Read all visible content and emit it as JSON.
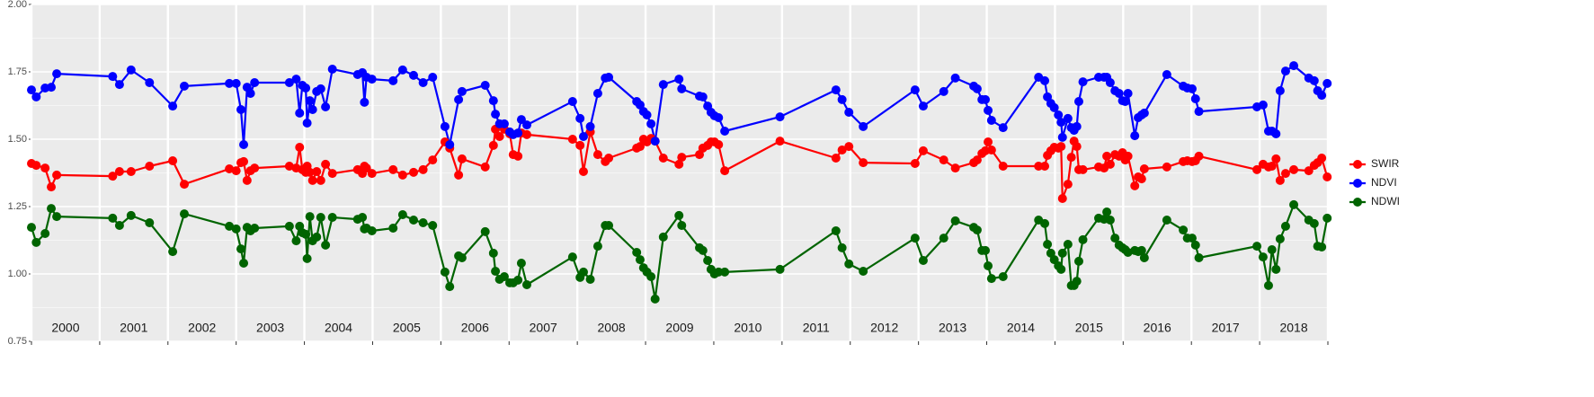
{
  "chart_data": {
    "type": "line",
    "ylim": [
      0.75,
      2.0
    ],
    "yticks": [
      0.75,
      {
        "value": 1,
        "label": "1.00"
      },
      1.25,
      {
        "value": 1.5,
        "label": "1.50"
      },
      1.75,
      {
        "value": 2,
        "label": "2.00"
      }
    ],
    "xlim": [
      2000,
      2019
    ],
    "xticks": [
      2000,
      2001,
      2002,
      2003,
      2004,
      2005,
      2006,
      2007,
      2008,
      2009,
      2010,
      2011,
      2012,
      2013,
      2014,
      2015,
      2016,
      2017,
      2018,
      2019
    ],
    "year_labels": [
      2000,
      2001,
      2002,
      2003,
      2004,
      2005,
      2006,
      2007,
      2008,
      2009,
      2010,
      2011,
      2012,
      2013,
      2014,
      2015,
      2016,
      2017,
      2018
    ],
    "grid": true,
    "legend": "right",
    "x": [
      2000.0,
      2000.07,
      2000.2,
      2000.29,
      2000.37,
      2001.19,
      2001.29,
      2001.46,
      2001.73,
      2002.07,
      2002.24,
      2002.9,
      2003.0,
      2003.07,
      2003.11,
      2003.16,
      2003.21,
      2003.27,
      2003.78,
      2003.88,
      2003.93,
      2003.97,
      2004.02,
      2004.04,
      2004.08,
      2004.12,
      2004.18,
      2004.24,
      2004.31,
      2004.41,
      2004.78,
      2004.85,
      2004.88,
      2004.91,
      2004.99,
      2005.3,
      2005.44,
      2005.6,
      2005.74,
      2005.88,
      2006.06,
      2006.13,
      2006.26,
      2006.31,
      2006.65,
      2006.77,
      2006.8,
      2006.86,
      2006.93,
      2007.01,
      2007.06,
      2007.13,
      2007.18,
      2007.26,
      2007.93,
      2008.04,
      2008.09,
      2008.19,
      2008.3,
      2008.41,
      2008.46,
      2008.87,
      2008.92,
      2008.97,
      2009.02,
      2009.08,
      2009.14,
      2009.26,
      2009.49,
      2009.53,
      2009.79,
      2009.84,
      2009.91,
      2009.96,
      2010.01,
      2010.07,
      2010.16,
      2010.97,
      2011.79,
      2011.88,
      2011.98,
      2012.19,
      2012.95,
      2013.07,
      2013.37,
      2013.54,
      2013.81,
      2013.86,
      2013.93,
      2013.98,
      2014.02,
      2014.07,
      2014.24,
      2014.76,
      2014.85,
      2014.89,
      2014.94,
      2014.99,
      2015.05,
      2015.09,
      2015.11,
      2015.19,
      2015.24,
      2015.28,
      2015.32,
      2015.35,
      2015.41,
      2015.64,
      2015.72,
      2015.76,
      2015.81,
      2015.88,
      2015.94,
      2015.99,
      2016.03,
      2016.07,
      2016.17,
      2016.22,
      2016.27,
      2016.31,
      2016.64,
      2016.88,
      2016.94,
      2017.01,
      2017.06,
      2017.11,
      2017.96,
      2018.05,
      2018.13,
      2018.18,
      2018.24,
      2018.3,
      2018.38,
      2018.5,
      2018.72,
      2018.8,
      2018.85,
      2018.91,
      2018.99
    ],
    "series": [
      {
        "name": "SWIR",
        "color": "#ff0000",
        "values": [
          1.41,
          1.403,
          1.393,
          1.323,
          1.367,
          1.363,
          1.38,
          1.38,
          1.4,
          1.42,
          1.333,
          1.39,
          1.383,
          1.413,
          1.417,
          1.347,
          1.383,
          1.393,
          1.4,
          1.393,
          1.47,
          1.387,
          1.377,
          1.4,
          1.377,
          1.347,
          1.38,
          1.347,
          1.407,
          1.373,
          1.387,
          1.373,
          1.4,
          1.393,
          1.373,
          1.387,
          1.367,
          1.377,
          1.387,
          1.423,
          1.49,
          1.467,
          1.367,
          1.427,
          1.397,
          1.477,
          1.537,
          1.51,
          1.537,
          1.52,
          1.443,
          1.437,
          1.523,
          1.517,
          1.5,
          1.477,
          1.38,
          1.527,
          1.443,
          1.417,
          1.43,
          1.467,
          1.473,
          1.5,
          1.49,
          1.503,
          1.493,
          1.43,
          1.407,
          1.433,
          1.443,
          1.467,
          1.477,
          1.49,
          1.49,
          1.48,
          1.383,
          1.493,
          1.43,
          1.46,
          1.473,
          1.413,
          1.41,
          1.457,
          1.423,
          1.393,
          1.413,
          1.423,
          1.447,
          1.457,
          1.49,
          1.46,
          1.4,
          1.4,
          1.4,
          1.44,
          1.457,
          1.47,
          1.467,
          1.473,
          1.28,
          1.333,
          1.433,
          1.493,
          1.473,
          1.387,
          1.387,
          1.397,
          1.393,
          1.437,
          1.407,
          1.443,
          1.437,
          1.45,
          1.423,
          1.437,
          1.327,
          1.36,
          1.353,
          1.39,
          1.397,
          1.417,
          1.42,
          1.417,
          1.42,
          1.437,
          1.387,
          1.407,
          1.397,
          1.4,
          1.427,
          1.347,
          1.373,
          1.387,
          1.383,
          1.403,
          1.413,
          1.43,
          1.36
        ]
      },
      {
        "name": "NDVI",
        "color": "#0000ff",
        "values": [
          1.683,
          1.657,
          1.69,
          1.693,
          1.743,
          1.733,
          1.703,
          1.757,
          1.71,
          1.623,
          1.697,
          1.707,
          1.707,
          1.61,
          1.48,
          1.693,
          1.67,
          1.71,
          1.71,
          1.723,
          1.597,
          1.7,
          1.69,
          1.56,
          1.643,
          1.61,
          1.677,
          1.687,
          1.62,
          1.76,
          1.74,
          1.747,
          1.637,
          1.73,
          1.723,
          1.717,
          1.757,
          1.737,
          1.71,
          1.73,
          1.547,
          1.48,
          1.647,
          1.677,
          1.7,
          1.643,
          1.593,
          1.557,
          1.557,
          1.527,
          1.517,
          1.523,
          1.573,
          1.553,
          1.64,
          1.577,
          1.51,
          1.547,
          1.67,
          1.727,
          1.73,
          1.64,
          1.627,
          1.603,
          1.59,
          1.557,
          1.493,
          1.703,
          1.723,
          1.687,
          1.66,
          1.657,
          1.623,
          1.6,
          1.587,
          1.58,
          1.53,
          1.583,
          1.683,
          1.647,
          1.6,
          1.547,
          1.683,
          1.623,
          1.677,
          1.727,
          1.697,
          1.687,
          1.647,
          1.647,
          1.607,
          1.57,
          1.543,
          1.73,
          1.717,
          1.657,
          1.633,
          1.617,
          1.59,
          1.563,
          1.507,
          1.577,
          1.543,
          1.533,
          1.547,
          1.64,
          1.713,
          1.73,
          1.73,
          1.73,
          1.71,
          1.68,
          1.67,
          1.643,
          1.64,
          1.67,
          1.513,
          1.58,
          1.59,
          1.597,
          1.74,
          1.697,
          1.69,
          1.687,
          1.65,
          1.603,
          1.62,
          1.627,
          1.53,
          1.53,
          1.52,
          1.68,
          1.753,
          1.773,
          1.727,
          1.717,
          1.68,
          1.663,
          1.707
        ]
      },
      {
        "name": "NDWI",
        "color": "#006400",
        "values": [
          1.173,
          1.117,
          1.15,
          1.243,
          1.213,
          1.207,
          1.18,
          1.217,
          1.19,
          1.083,
          1.223,
          1.177,
          1.167,
          1.093,
          1.04,
          1.173,
          1.16,
          1.17,
          1.177,
          1.123,
          1.177,
          1.153,
          1.147,
          1.057,
          1.213,
          1.123,
          1.137,
          1.21,
          1.107,
          1.21,
          1.203,
          1.21,
          1.167,
          1.17,
          1.16,
          1.17,
          1.22,
          1.2,
          1.19,
          1.18,
          1.007,
          0.953,
          1.067,
          1.06,
          1.157,
          1.077,
          1.01,
          0.98,
          0.99,
          0.967,
          0.967,
          0.977,
          1.04,
          0.96,
          1.063,
          0.987,
          1.007,
          0.98,
          1.103,
          1.18,
          1.18,
          1.08,
          1.053,
          1.023,
          1.007,
          0.99,
          0.907,
          1.137,
          1.217,
          1.18,
          1.097,
          1.087,
          1.05,
          1.017,
          1.0,
          1.007,
          1.007,
          1.017,
          1.16,
          1.097,
          1.037,
          1.01,
          1.133,
          1.05,
          1.133,
          1.197,
          1.173,
          1.163,
          1.087,
          1.087,
          1.03,
          0.983,
          0.99,
          1.2,
          1.187,
          1.11,
          1.077,
          1.053,
          1.03,
          1.017,
          1.077,
          1.11,
          0.957,
          0.957,
          0.973,
          1.047,
          1.127,
          1.207,
          1.203,
          1.23,
          1.2,
          1.133,
          1.107,
          1.097,
          1.09,
          1.08,
          1.087,
          1.083,
          1.087,
          1.06,
          1.2,
          1.163,
          1.133,
          1.133,
          1.107,
          1.06,
          1.103,
          1.063,
          0.957,
          1.09,
          1.017,
          1.13,
          1.177,
          1.257,
          1.2,
          1.187,
          1.103,
          1.1,
          1.207
        ]
      }
    ]
  }
}
